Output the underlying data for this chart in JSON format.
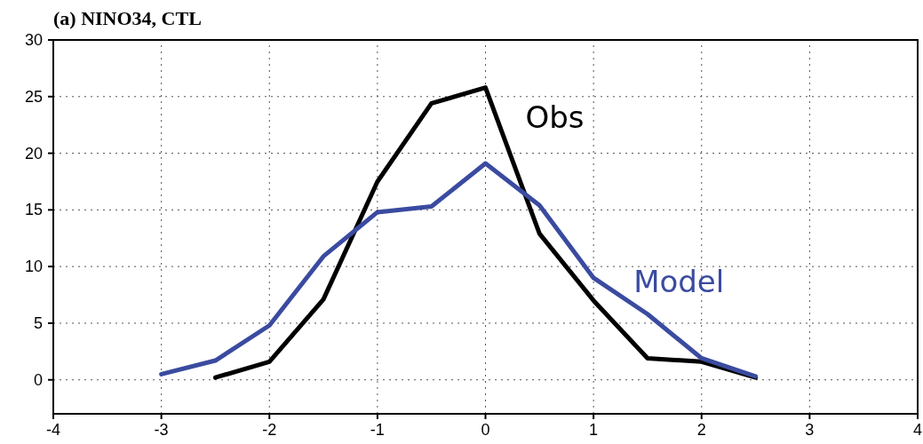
{
  "chart_data": {
    "type": "line",
    "title": "(a) NINO34, CTL",
    "xlim": [
      -4,
      4
    ],
    "xticks": [
      -4,
      -3,
      -2,
      -1,
      0,
      1,
      2,
      3,
      4
    ],
    "ylim": [
      -3,
      30
    ],
    "yticks": [
      0,
      5,
      10,
      15,
      20,
      25,
      30
    ],
    "grid": true,
    "marker": "none",
    "line_style": "solid",
    "series": [
      {
        "name": "Obs",
        "color": "#000000",
        "x": [
          -2.5,
          -2,
          -1.5,
          -1,
          -0.5,
          0,
          0.5,
          1,
          1.5,
          2,
          2.5
        ],
        "values": [
          0.2,
          1.6,
          7.1,
          17.5,
          24.4,
          25.8,
          12.9,
          7,
          1.9,
          1.6,
          0.2
        ]
      },
      {
        "name": "Model",
        "color": "#3a4ba0",
        "x": [
          -3,
          -2.5,
          -2,
          -1.5,
          -1,
          -0.5,
          0,
          0.5,
          1,
          1.5,
          2,
          2.5
        ],
        "values": [
          0.5,
          1.7,
          4.8,
          10.9,
          14.8,
          15.3,
          19.1,
          15.4,
          9,
          5.8,
          1.9,
          0.3
        ]
      }
    ]
  }
}
